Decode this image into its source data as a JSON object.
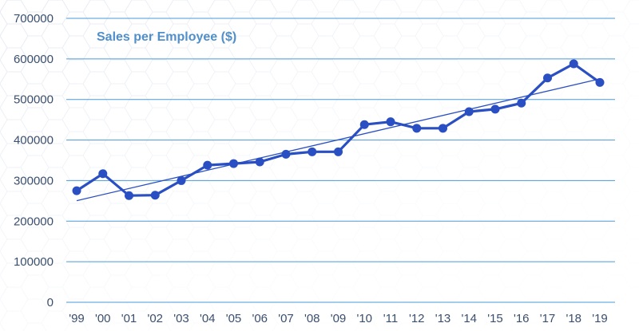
{
  "chart_data": {
    "type": "line",
    "title": "Sales per Employee ($)",
    "xlabel": "",
    "ylabel": "",
    "categories": [
      "'99",
      "'00",
      "'01",
      "'02",
      "'03",
      "'04",
      "'05",
      "'06",
      "'07",
      "'08",
      "'09",
      "'10",
      "'11",
      "'12",
      "'13",
      "'14",
      "'15",
      "'16",
      "'17",
      "'18",
      "'19"
    ],
    "series": [
      {
        "values": [
          275000,
          317000,
          263000,
          264000,
          300000,
          338000,
          342000,
          346000,
          365000,
          371000,
          371000,
          438000,
          445000,
          429000,
          429000,
          470000,
          476000,
          491000,
          553000,
          588000,
          542000
        ],
        "color": "#2a4fc2"
      }
    ],
    "trendline": {
      "type": "linear",
      "color": "#2a4fc2"
    },
    "ylim": [
      0,
      700000
    ],
    "yticks": [
      0,
      100000,
      200000,
      300000,
      400000,
      500000,
      600000,
      700000
    ],
    "ytick_labels": [
      "0",
      "100000",
      "200000",
      "300000",
      "400000",
      "500000",
      "600000",
      "700000"
    ],
    "grid": true,
    "grid_color": "#4a9ad8",
    "legend": "none"
  }
}
